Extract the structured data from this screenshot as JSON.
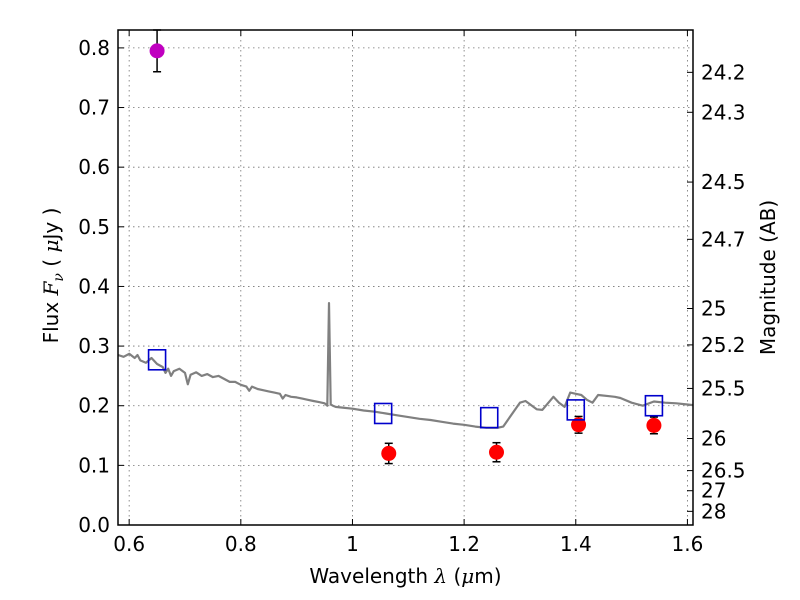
{
  "chart_data": {
    "type": "scatter",
    "title": "",
    "xlabel": "Wavelength  λ (μm)",
    "ylabel": "Flux  F_ν  ( μJy )",
    "y2label": "Magnitude (AB)",
    "xlim": [
      0.58,
      1.61
    ],
    "ylim": [
      0.0,
      0.83
    ],
    "grid": true,
    "x_ticks": [
      0.6,
      0.8,
      1.0,
      1.2,
      1.4,
      1.6
    ],
    "x_tick_labels": [
      "0.6",
      "0.8",
      "1",
      "1.2",
      "1.4",
      "1.6"
    ],
    "y_ticks": [
      0.0,
      0.1,
      0.2,
      0.3,
      0.4,
      0.5,
      0.6,
      0.7,
      0.8
    ],
    "y_tick_labels": [
      "0.0",
      "0.1",
      "0.2",
      "0.3",
      "0.4",
      "0.5",
      "0.6",
      "0.7",
      "0.8"
    ],
    "y2_ticks": [
      {
        "label": "24.2",
        "flux": 0.759
      },
      {
        "label": "24.3",
        "flux": 0.692
      },
      {
        "label": "24.5",
        "flux": 0.575
      },
      {
        "label": "24.7",
        "flux": 0.479
      },
      {
        "label": "25",
        "flux": 0.363
      },
      {
        "label": "25.2",
        "flux": 0.302
      },
      {
        "label": "25.5",
        "flux": 0.229
      },
      {
        "label": "26",
        "flux": 0.145
      },
      {
        "label": "26.5",
        "flux": 0.0912
      },
      {
        "label": "27",
        "flux": 0.0575
      },
      {
        "label": "28",
        "flux": 0.0229
      }
    ],
    "series": [
      {
        "kind": "line",
        "color": "#808080",
        "points": [
          [
            0.58,
            0.285
          ],
          [
            0.59,
            0.282
          ],
          [
            0.6,
            0.287
          ],
          [
            0.61,
            0.28
          ],
          [
            0.615,
            0.285
          ],
          [
            0.62,
            0.276
          ],
          [
            0.63,
            0.272
          ],
          [
            0.64,
            0.28
          ],
          [
            0.65,
            0.27
          ],
          [
            0.66,
            0.265
          ],
          [
            0.665,
            0.255
          ],
          [
            0.67,
            0.262
          ],
          [
            0.675,
            0.25
          ],
          [
            0.68,
            0.258
          ],
          [
            0.69,
            0.262
          ],
          [
            0.7,
            0.255
          ],
          [
            0.705,
            0.236
          ],
          [
            0.71,
            0.252
          ],
          [
            0.72,
            0.256
          ],
          [
            0.73,
            0.25
          ],
          [
            0.74,
            0.253
          ],
          [
            0.75,
            0.248
          ],
          [
            0.76,
            0.25
          ],
          [
            0.77,
            0.245
          ],
          [
            0.78,
            0.24
          ],
          [
            0.79,
            0.24
          ],
          [
            0.8,
            0.235
          ],
          [
            0.81,
            0.232
          ],
          [
            0.815,
            0.225
          ],
          [
            0.82,
            0.232
          ],
          [
            0.83,
            0.228
          ],
          [
            0.84,
            0.226
          ],
          [
            0.85,
            0.224
          ],
          [
            0.86,
            0.222
          ],
          [
            0.87,
            0.22
          ],
          [
            0.875,
            0.212
          ],
          [
            0.88,
            0.218
          ],
          [
            0.89,
            0.215
          ],
          [
            0.9,
            0.214
          ],
          [
            0.91,
            0.212
          ],
          [
            0.92,
            0.21
          ],
          [
            0.93,
            0.208
          ],
          [
            0.94,
            0.206
          ],
          [
            0.95,
            0.204
          ],
          [
            0.955,
            0.2
          ],
          [
            0.958,
            0.372
          ],
          [
            0.961,
            0.202
          ],
          [
            0.965,
            0.2
          ],
          [
            0.97,
            0.198
          ],
          [
            0.98,
            0.197
          ],
          [
            1.0,
            0.195
          ],
          [
            1.02,
            0.192
          ],
          [
            1.04,
            0.19
          ],
          [
            1.06,
            0.187
          ],
          [
            1.08,
            0.184
          ],
          [
            1.1,
            0.181
          ],
          [
            1.12,
            0.178
          ],
          [
            1.14,
            0.176
          ],
          [
            1.16,
            0.173
          ],
          [
            1.18,
            0.17
          ],
          [
            1.2,
            0.168
          ],
          [
            1.22,
            0.165
          ],
          [
            1.24,
            0.163
          ],
          [
            1.26,
            0.163
          ],
          [
            1.27,
            0.165
          ],
          [
            1.3,
            0.205
          ],
          [
            1.31,
            0.208
          ],
          [
            1.33,
            0.194
          ],
          [
            1.34,
            0.193
          ],
          [
            1.36,
            0.215
          ],
          [
            1.37,
            0.205
          ],
          [
            1.38,
            0.198
          ],
          [
            1.39,
            0.222
          ],
          [
            1.4,
            0.22
          ],
          [
            1.41,
            0.218
          ],
          [
            1.42,
            0.21
          ],
          [
            1.43,
            0.205
          ],
          [
            1.44,
            0.218
          ],
          [
            1.46,
            0.216
          ],
          [
            1.47,
            0.215
          ],
          [
            1.48,
            0.213
          ],
          [
            1.5,
            0.205
          ],
          [
            1.52,
            0.2
          ],
          [
            1.54,
            0.207
          ],
          [
            1.56,
            0.205
          ],
          [
            1.58,
            0.204
          ],
          [
            1.6,
            0.202
          ],
          [
            1.61,
            0.201
          ]
        ]
      },
      {
        "kind": "markers",
        "marker": "circle",
        "color": "#c000c0",
        "points": [
          {
            "x": 0.65,
            "y": 0.795,
            "err": 0.035
          }
        ]
      },
      {
        "kind": "markers",
        "marker": "circle",
        "color": "#ff0000",
        "points": [
          {
            "x": 1.065,
            "y": 0.12,
            "err": 0.017
          },
          {
            "x": 1.258,
            "y": 0.122,
            "err": 0.016
          },
          {
            "x": 1.405,
            "y": 0.168,
            "err": 0.014
          },
          {
            "x": 1.54,
            "y": 0.167,
            "err": 0.014
          }
        ]
      },
      {
        "kind": "markers",
        "marker": "open-square",
        "color": "#0000cc",
        "points": [
          {
            "x": 0.65,
            "y": 0.277
          },
          {
            "x": 1.055,
            "y": 0.187
          },
          {
            "x": 1.245,
            "y": 0.18
          },
          {
            "x": 1.4,
            "y": 0.193
          },
          {
            "x": 1.54,
            "y": 0.2
          }
        ]
      }
    ]
  }
}
